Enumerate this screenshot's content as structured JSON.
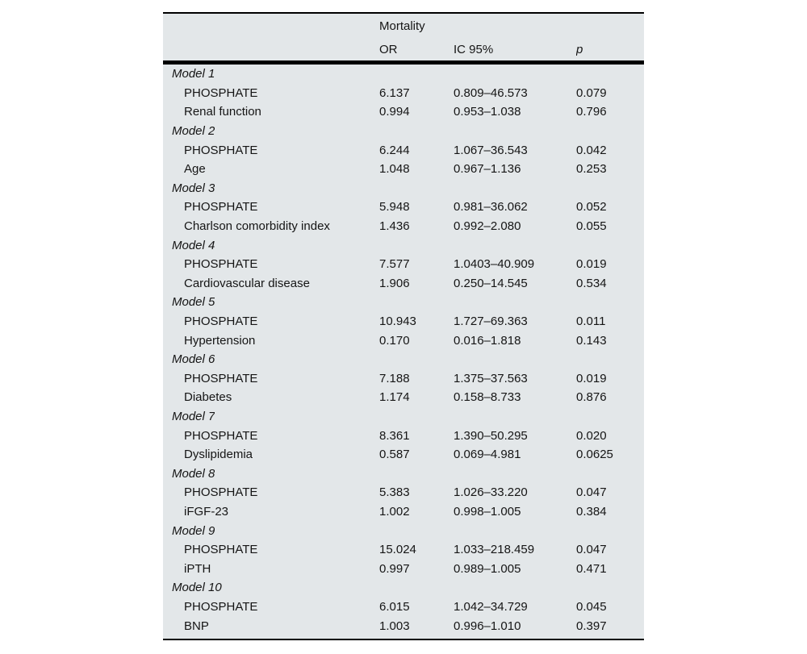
{
  "table": {
    "background": "#e3e7e9",
    "rule_color": "#000000",
    "title": "Mortality",
    "columns": {
      "or": "OR",
      "ic": "IC 95%",
      "p": "p"
    },
    "models": [
      {
        "name": "Model 1",
        "rows": [
          {
            "label": "PHOSPHATE",
            "or": "6.137",
            "ic": "0.809–46.573",
            "p": "0.079"
          },
          {
            "label": "Renal function",
            "or": "0.994",
            "ic": "0.953–1.038",
            "p": "0.796"
          }
        ]
      },
      {
        "name": "Model 2",
        "rows": [
          {
            "label": "PHOSPHATE",
            "or": "6.244",
            "ic": "1.067–36.543",
            "p": "0.042"
          },
          {
            "label": "Age",
            "or": "1.048",
            "ic": "0.967–1.136",
            "p": "0.253"
          }
        ]
      },
      {
        "name": "Model 3",
        "rows": [
          {
            "label": "PHOSPHATE",
            "or": "5.948",
            "ic": "0.981–36.062",
            "p": "0.052"
          },
          {
            "label": "Charlson comorbidity index",
            "or": "1.436",
            "ic": "0.992–2.080",
            "p": "0.055"
          }
        ]
      },
      {
        "name": "Model 4",
        "rows": [
          {
            "label": "PHOSPHATE",
            "or": "7.577",
            "ic": "1.0403–40.909",
            "p": "0.019"
          },
          {
            "label": "Cardiovascular disease",
            "or": "1.906",
            "ic": "0.250–14.545",
            "p": "0.534"
          }
        ]
      },
      {
        "name": "Model 5",
        "rows": [
          {
            "label": "PHOSPHATE",
            "or": "10.943",
            "ic": "1.727–69.363",
            "p": "0.011"
          },
          {
            "label": "Hypertension",
            "or": "0.170",
            "ic": "0.016–1.818",
            "p": "0.143"
          }
        ]
      },
      {
        "name": "Model 6",
        "rows": [
          {
            "label": "PHOSPHATE",
            "or": "7.188",
            "ic": "1.375–37.563",
            "p": "0.019"
          },
          {
            "label": "Diabetes",
            "or": "1.174",
            "ic": "0.158–8.733",
            "p": "0.876"
          }
        ]
      },
      {
        "name": "Model 7",
        "rows": [
          {
            "label": "PHOSPHATE",
            "or": "8.361",
            "ic": "1.390–50.295",
            "p": "0.020"
          },
          {
            "label": "Dyslipidemia",
            "or": "0.587",
            "ic": "0.069–4.981",
            "p": "0.0625"
          }
        ]
      },
      {
        "name": "Model 8",
        "rows": [
          {
            "label": "PHOSPHATE",
            "or": "5.383",
            "ic": "1.026–33.220",
            "p": "0.047"
          },
          {
            "label": "iFGF-23",
            "or": "1.002",
            "ic": "0.998–1.005",
            "p": "0.384"
          }
        ]
      },
      {
        "name": "Model 9",
        "rows": [
          {
            "label": "PHOSPHATE",
            "or": "15.024",
            "ic": "1.033–218.459",
            "p": "0.047"
          },
          {
            "label": "iPTH",
            "or": "0.997",
            "ic": "0.989–1.005",
            "p": "0.471"
          }
        ]
      },
      {
        "name": "Model 10",
        "rows": [
          {
            "label": "PHOSPHATE",
            "or": "6.015",
            "ic": "1.042–34.729",
            "p": "0.045"
          },
          {
            "label": "BNP",
            "or": "1.003",
            "ic": "0.996–1.010",
            "p": "0.397"
          }
        ]
      }
    ]
  }
}
